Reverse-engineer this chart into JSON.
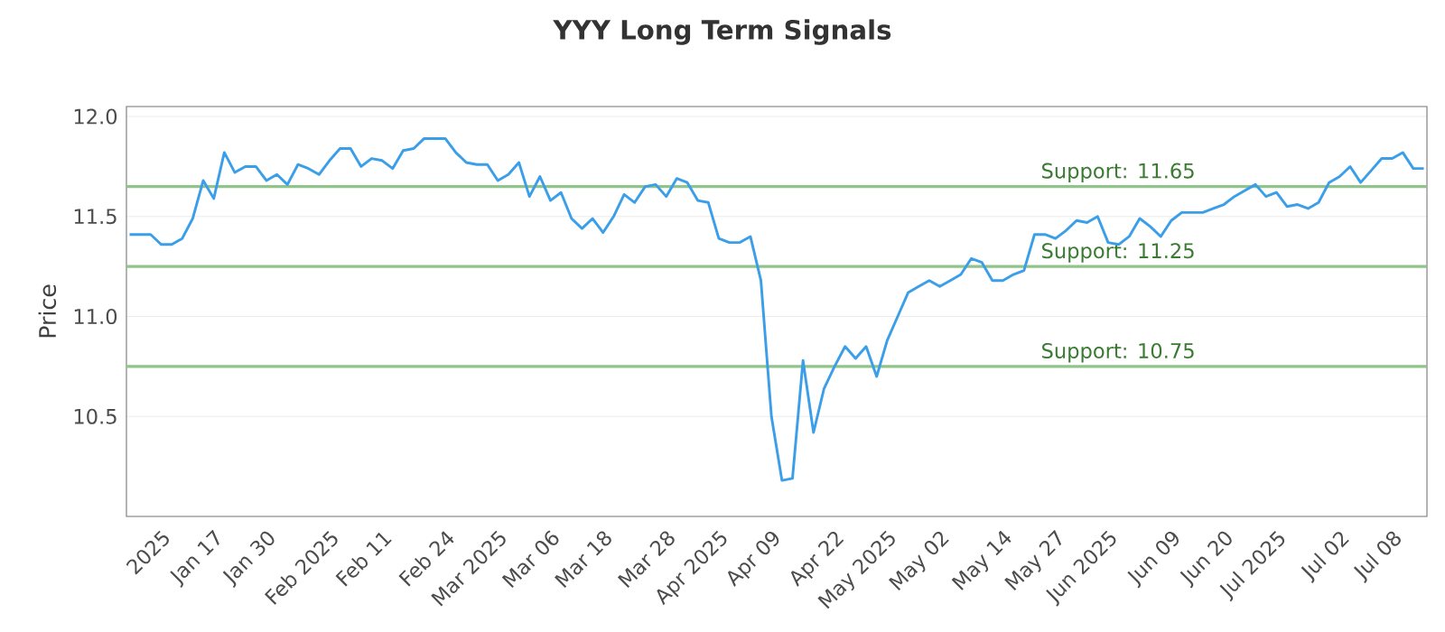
{
  "chart_data": {
    "type": "line",
    "title": "YYY Long Term Signals",
    "ylabel": "Price",
    "categories": [
      null,
      null,
      null,
      "2025",
      null,
      null,
      null,
      null,
      "Jan 17",
      null,
      null,
      null,
      null,
      "Jan 30",
      null,
      null,
      null,
      null,
      null,
      "Feb 2025",
      null,
      null,
      null,
      null,
      "Feb 11",
      null,
      null,
      null,
      null,
      null,
      "Feb 24",
      null,
      null,
      null,
      null,
      "Mar 2025",
      null,
      null,
      null,
      null,
      "Mar 06",
      null,
      null,
      null,
      null,
      "Mar 18",
      null,
      null,
      null,
      null,
      null,
      "Mar 28",
      null,
      null,
      null,
      null,
      "Apr 2025",
      null,
      null,
      null,
      null,
      "Apr 09",
      null,
      null,
      null,
      null,
      null,
      "Apr 22",
      null,
      null,
      null,
      null,
      "May 2025",
      null,
      null,
      null,
      null,
      "May 02",
      null,
      null,
      null,
      null,
      null,
      "May 14",
      null,
      null,
      null,
      null,
      "May 27",
      null,
      null,
      null,
      null,
      "Jun 2025",
      null,
      null,
      null,
      null,
      null,
      "Jun 09",
      null,
      null,
      null,
      null,
      "Jun 20",
      null,
      null,
      null,
      null,
      "Jul 2025",
      null,
      null,
      null,
      null,
      null,
      "Jul 02",
      null,
      null,
      null,
      null,
      "Jul 08",
      null,
      null,
      null
    ],
    "series": [
      {
        "color": "#3a9ee8",
        "values": [
          11.41,
          11.41,
          11.41,
          11.36,
          11.36,
          11.39,
          11.49,
          11.68,
          11.59,
          11.82,
          11.72,
          11.75,
          11.75,
          11.68,
          11.71,
          11.66,
          11.76,
          11.74,
          11.71,
          11.78,
          11.84,
          11.84,
          11.75,
          11.79,
          11.78,
          11.74,
          11.83,
          11.84,
          11.89,
          11.89,
          11.89,
          11.82,
          11.77,
          11.76,
          11.76,
          11.68,
          11.71,
          11.77,
          11.6,
          11.7,
          11.58,
          11.62,
          11.49,
          11.44,
          11.49,
          11.42,
          11.5,
          11.61,
          11.57,
          11.65,
          11.66,
          11.6,
          11.69,
          11.67,
          11.58,
          11.57,
          11.39,
          11.37,
          11.37,
          11.4,
          11.18,
          10.5,
          10.18,
          10.19,
          10.78,
          10.42,
          10.64,
          10.75,
          10.85,
          10.79,
          10.85,
          10.7,
          10.88,
          11.0,
          11.12,
          11.15,
          11.18,
          11.15,
          11.18,
          11.21,
          11.29,
          11.27,
          11.18,
          11.18,
          11.21,
          11.23,
          11.41,
          11.41,
          11.39,
          11.43,
          11.48,
          11.47,
          11.5,
          11.37,
          11.36,
          11.4,
          11.49,
          11.45,
          11.4,
          11.48,
          11.52,
          11.52,
          11.52,
          11.54,
          11.56,
          11.6,
          11.63,
          11.66,
          11.6,
          11.62,
          11.55,
          11.56,
          11.54,
          11.57,
          11.67,
          11.7,
          11.75,
          11.67,
          11.73,
          11.79,
          11.79,
          11.82,
          11.74,
          11.74
        ]
      }
    ],
    "ylim": [
      10.0,
      12.05
    ],
    "yticks": [
      {
        "value": 10.5,
        "label": "10.5"
      },
      {
        "value": 11.0,
        "label": "11.0"
      },
      {
        "value": 11.5,
        "label": "11.5"
      },
      {
        "value": 12.0,
        "label": "12.0"
      }
    ],
    "ref_lines": [
      {
        "axis": "y",
        "value": 11.65,
        "label": "Support: 11.65",
        "color": "#8fc48a"
      },
      {
        "axis": "y",
        "value": 11.25,
        "label": "Support: 11.25",
        "color": "#8fc48a"
      },
      {
        "axis": "y",
        "value": 10.75,
        "label": "Support: 10.75",
        "color": "#8fc48a"
      }
    ],
    "grid": "y",
    "marker": "none",
    "line_style": "solid"
  }
}
